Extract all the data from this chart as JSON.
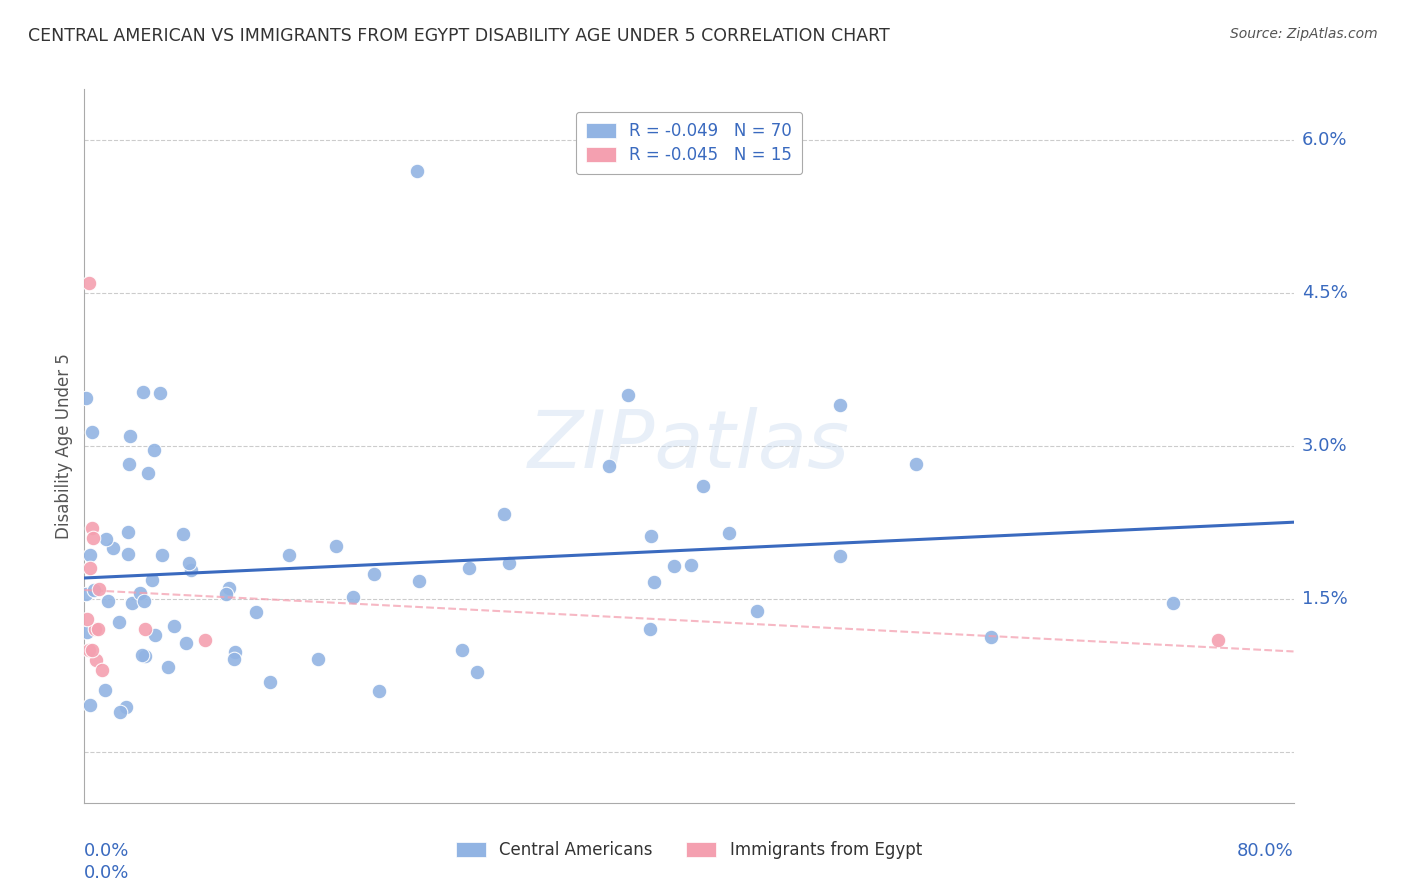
{
  "title": "CENTRAL AMERICAN VS IMMIGRANTS FROM EGYPT DISABILITY AGE UNDER 5 CORRELATION CHART",
  "source": "Source: ZipAtlas.com",
  "ylabel": "Disability Age Under 5",
  "watermark": "ZIPatlas",
  "ca_dot_color": "#92b4e3",
  "egypt_dot_color": "#f4a0b0",
  "ca_line_color": "#3a6abf",
  "egypt_line_color": "#e8a0b0",
  "background_color": "#ffffff",
  "grid_color": "#cccccc",
  "title_color": "#333333",
  "axis_color": "#3a6abf",
  "text_color": "#555555",
  "xmin": 0.0,
  "xmax": 0.8,
  "ymin": -0.005,
  "ymax": 0.065,
  "ytick_vals": [
    0.0,
    0.015,
    0.03,
    0.045,
    0.06
  ],
  "ytick_labels": [
    "",
    "1.5%",
    "3.0%",
    "4.5%",
    "6.0%"
  ],
  "legend_line1": "R = -0.049   N = 70",
  "legend_line2": "R = -0.045   N = 15",
  "bottom_legend1": "Central Americans",
  "bottom_legend2": "Immigrants from Egypt"
}
